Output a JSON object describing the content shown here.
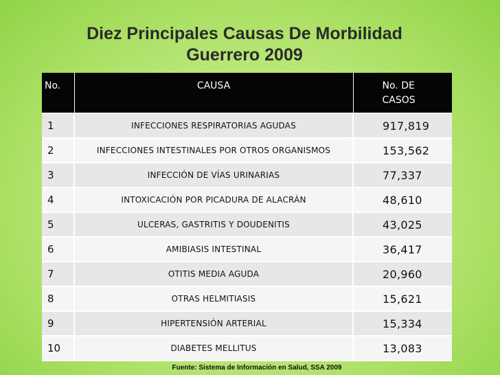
{
  "slide": {
    "title_line1": "Diez Principales Causas De Morbilidad",
    "title_line2": "Guerrero 2009",
    "source": "Fuente: Sistema de Información en Salud, SSA 2009"
  },
  "table": {
    "headers": {
      "no": "No.",
      "causa": "CAUSA",
      "casos_line1": "No. DE",
      "casos_line2": "CASOS"
    },
    "rows": [
      {
        "no": "1",
        "causa": "INFECCIONES RESPIRATORIAS AGUDAS",
        "casos": "917,819"
      },
      {
        "no": "2",
        "causa": "INFECCIONES INTESTINALES POR OTROS ORGANISMOS",
        "casos": "153,562"
      },
      {
        "no": "3",
        "causa": "INFECCIÓN DE VÍAS URINARIAS",
        "casos": "77,337"
      },
      {
        "no": "4",
        "causa": "INTOXICACIÓN POR PICADURA DE ALACRÁN",
        "casos": "48,610"
      },
      {
        "no": "5",
        "causa": "ULCERAS, GASTRITIS Y DOUDENITIS",
        "casos": "43,025"
      },
      {
        "no": "6",
        "causa": "AMIBIASIS INTESTINAL",
        "casos": "36,417"
      },
      {
        "no": "7",
        "causa": "OTITIS MEDIA AGUDA",
        "casos": "20,960"
      },
      {
        "no": "8",
        "causa": "OTRAS HELMITIASIS",
        "casos": "15,621"
      },
      {
        "no": "9",
        "causa": "HIPERTENSIÓN ARTERIAL",
        "casos": "15,334"
      },
      {
        "no": "10",
        "causa": "DIABETES MELLITUS",
        "casos": "13,083"
      }
    ]
  }
}
